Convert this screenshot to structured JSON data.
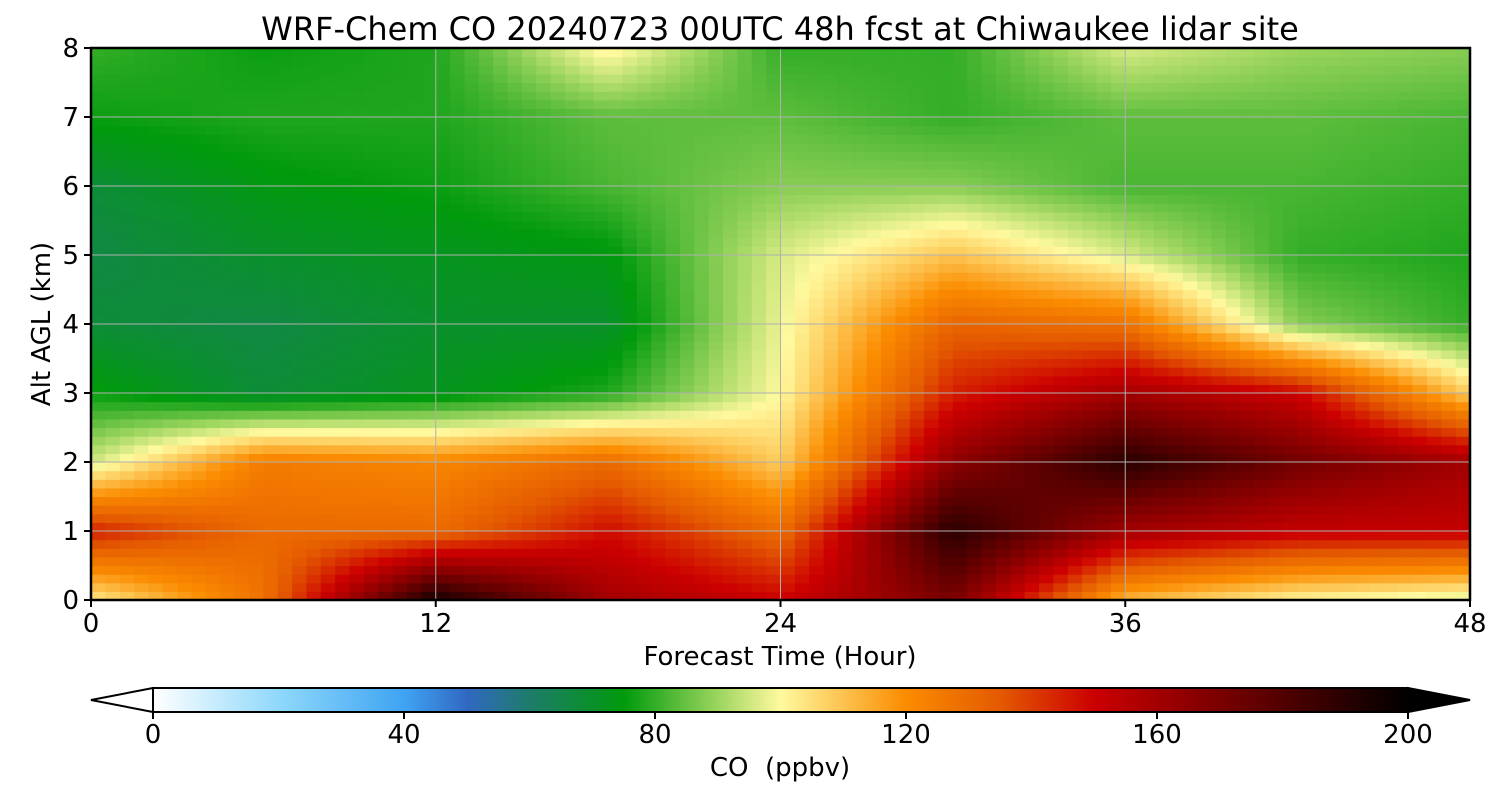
{
  "chart_data": {
    "type": "heatmap",
    "title": "WRF-Chem CO  20240723 00UTC 48h fcst at Chiwaukee lidar site",
    "xlabel": "Forecast Time (Hour)",
    "ylabel": "Alt AGL (km)",
    "xlim": [
      0,
      48
    ],
    "ylim": [
      0,
      8
    ],
    "x_ticks": [
      "0",
      "12",
      "24",
      "36",
      "48"
    ],
    "y_ticks": [
      "0",
      "1",
      "2",
      "3",
      "4",
      "5",
      "6",
      "7",
      "8"
    ],
    "grid": true,
    "colorbar": {
      "label": "CO  (ppbv)",
      "range": [
        0,
        200
      ],
      "ticks": [
        "0",
        "40",
        "80",
        "120",
        "160",
        "200"
      ],
      "extend": "both",
      "orientation": "horizontal",
      "stops": [
        {
          "value": 0,
          "color": "#ffffff"
        },
        {
          "value": 20,
          "color": "#8fd8fb"
        },
        {
          "value": 40,
          "color": "#3fa4f2"
        },
        {
          "value": 50,
          "color": "#3168c4"
        },
        {
          "value": 60,
          "color": "#1d7c6a"
        },
        {
          "value": 75,
          "color": "#009a0c"
        },
        {
          "value": 90,
          "color": "#9cd55e"
        },
        {
          "value": 100,
          "color": "#fff99e"
        },
        {
          "value": 120,
          "color": "#fb8c00"
        },
        {
          "value": 135,
          "color": "#e45a00"
        },
        {
          "value": 150,
          "color": "#cc0000"
        },
        {
          "value": 170,
          "color": "#7a0000"
        },
        {
          "value": 200,
          "color": "#000000"
        }
      ]
    },
    "x": [
      0,
      6,
      12,
      18,
      24,
      30,
      36,
      42,
      48
    ],
    "y": [
      0,
      1,
      2,
      3,
      4,
      5,
      6,
      7,
      8
    ],
    "z_units": "ppbv",
    "z": [
      [
        102,
        128,
        195,
        160,
        150,
        170,
        112,
        100,
        95
      ],
      [
        145,
        130,
        130,
        148,
        130,
        190,
        160,
        152,
        152
      ],
      [
        95,
        125,
        122,
        130,
        108,
        165,
        190,
        172,
        160
      ],
      [
        76,
        68,
        72,
        78,
        100,
        145,
        160,
        150,
        108
      ],
      [
        68,
        66,
        70,
        70,
        98,
        132,
        128,
        88,
        80
      ],
      [
        66,
        70,
        72,
        74,
        96,
        110,
        96,
        80,
        78
      ],
      [
        68,
        74,
        76,
        82,
        88,
        88,
        82,
        82,
        80
      ],
      [
        76,
        78,
        78,
        84,
        84,
        80,
        84,
        84,
        82
      ],
      [
        80,
        76,
        78,
        102,
        80,
        80,
        96,
        90,
        88
      ]
    ]
  }
}
